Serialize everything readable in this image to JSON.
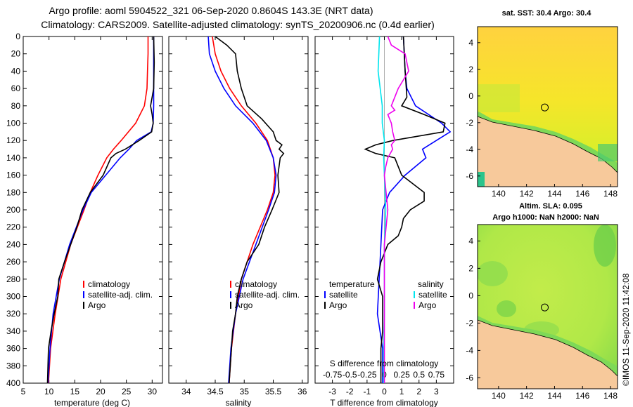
{
  "header": {
    "line1": "Argo profile: aoml 5904522_321 06-Sep-2020 0.8604S 143.3E (NRT data)",
    "line2": "Climatology: CARS2009. Satellite-adjusted climatology: synTS_20200906.nc (0.4d earlier)"
  },
  "credit": "©IMOS 11-Sep-2020 11:42:08",
  "colors": {
    "climatology": "#ff0000",
    "satellite": "#0000ff",
    "argo": "#000000",
    "sat_s": "#00e5ee",
    "argo_s": "#ee00ee"
  },
  "chart_data": [
    {
      "type": "line",
      "panel": "temperature",
      "xlabel": "temperature (deg C)",
      "xlim": [
        5,
        32
      ],
      "xticks": [
        5,
        10,
        15,
        20,
        25,
        30
      ],
      "xtick_labels": [
        "5",
        "10",
        "15",
        "20",
        "25",
        "30"
      ],
      "ylim": [
        400,
        0
      ],
      "yticks": [
        0,
        20,
        40,
        60,
        80,
        100,
        120,
        140,
        160,
        180,
        200,
        220,
        240,
        260,
        280,
        300,
        320,
        340,
        360,
        380,
        400
      ],
      "ytick_labels": [
        "0",
        "20",
        "40",
        "60",
        "80",
        "100",
        "120",
        "140",
        "160",
        "180",
        "200",
        "220",
        "240",
        "260",
        "280",
        "300",
        "320",
        "340",
        "360",
        "380",
        "400"
      ],
      "legend": [
        "climatology",
        "satellite-adj. clim.",
        "Argo"
      ],
      "series": [
        {
          "name": "climatology",
          "color": "#ff0000",
          "depth": [
            0,
            20,
            40,
            60,
            80,
            100,
            120,
            130,
            140,
            160,
            180,
            200,
            240,
            280,
            320,
            360,
            400
          ],
          "values": [
            29.2,
            29.2,
            29.1,
            29.0,
            28.5,
            26.8,
            24.0,
            22.5,
            21.2,
            19.5,
            18.0,
            16.8,
            14.2,
            12.3,
            11.2,
            10.3,
            9.9
          ]
        },
        {
          "name": "satellite-adj. clim.",
          "color": "#0000ff",
          "depth": [
            0,
            20,
            40,
            60,
            80,
            100,
            110,
            120,
            130,
            140,
            160,
            180,
            200,
            240,
            280,
            320,
            360,
            400
          ],
          "values": [
            30.3,
            30.3,
            30.3,
            30.3,
            30.3,
            30.2,
            29.8,
            27.0,
            25.5,
            23.8,
            21.0,
            18.2,
            16.6,
            14.0,
            12.0,
            10.8,
            10.2,
            9.8
          ]
        },
        {
          "name": "Argo",
          "color": "#000000",
          "depth": [
            0,
            30,
            60,
            80,
            90,
            100,
            110,
            120,
            130,
            135,
            140,
            160,
            180,
            200,
            220,
            240,
            260,
            280,
            300,
            320,
            340,
            360,
            380,
            400
          ],
          "values": [
            30.3,
            30.4,
            30.3,
            29.7,
            30.0,
            30.2,
            29.9,
            27.5,
            24.8,
            23.0,
            22.0,
            20.5,
            18.0,
            16.4,
            15.4,
            14.2,
            13.0,
            11.9,
            11.7,
            11.0,
            10.4,
            9.9,
            9.8,
            9.7
          ]
        }
      ]
    },
    {
      "type": "line",
      "panel": "salinity",
      "xlabel": "salinity",
      "xlim": [
        33.7,
        36.1
      ],
      "xticks": [
        34,
        34.5,
        35,
        35.5,
        36
      ],
      "xtick_labels": [
        "34",
        "34.5",
        "35",
        "35.5",
        "36"
      ],
      "ylim": [
        400,
        0
      ],
      "legend": [
        "climatology",
        "satellite-adj. clim.",
        "Argo"
      ],
      "series": [
        {
          "name": "climatology",
          "color": "#ff0000",
          "depth": [
            0,
            20,
            40,
            60,
            80,
            100,
            120,
            140,
            160,
            180,
            200,
            240,
            280,
            320,
            360,
            400
          ],
          "values": [
            34.45,
            34.5,
            34.6,
            34.75,
            34.95,
            35.2,
            35.4,
            35.5,
            35.53,
            35.5,
            35.4,
            35.15,
            34.95,
            34.85,
            34.78,
            34.74
          ]
        },
        {
          "name": "satellite-adj. clim.",
          "color": "#0000ff",
          "depth": [
            0,
            20,
            40,
            60,
            80,
            100,
            120,
            140,
            160,
            180,
            200,
            240,
            280,
            320,
            360,
            400
          ],
          "values": [
            34.38,
            34.4,
            34.5,
            34.65,
            34.85,
            35.15,
            35.38,
            35.5,
            35.55,
            35.52,
            35.42,
            35.2,
            34.98,
            34.85,
            34.77,
            34.73
          ]
        },
        {
          "name": "Argo",
          "color": "#000000",
          "depth": [
            0,
            10,
            20,
            40,
            60,
            80,
            95,
            110,
            120,
            125,
            130,
            135,
            140,
            160,
            180,
            200,
            220,
            240,
            260,
            280,
            300,
            320,
            340,
            360,
            380,
            400
          ],
          "values": [
            34.5,
            34.7,
            34.85,
            34.88,
            34.95,
            35.05,
            35.3,
            35.5,
            35.55,
            35.65,
            35.6,
            35.68,
            35.62,
            35.58,
            35.6,
            35.48,
            35.35,
            35.25,
            35.05,
            34.95,
            34.88,
            34.85,
            34.8,
            34.78,
            34.76,
            34.74
          ]
        }
      ]
    },
    {
      "type": "line",
      "panel": "difference",
      "xlabel": "T difference from climatology",
      "top_axis_label": "S difference from climatology",
      "xlim": [
        -4,
        4
      ],
      "xticks": [
        -3,
        -2,
        -1,
        0,
        1,
        2,
        3
      ],
      "xtick_labels": [
        "-3",
        "-2",
        "-1",
        "0",
        "1",
        "2",
        "3"
      ],
      "s_ticks": [
        -0.75,
        -0.5,
        -0.25,
        0,
        0.25,
        0.5,
        0.75
      ],
      "s_tick_labels": [
        "-0.75",
        "-0.5",
        "-0.25",
        "0",
        "0.25",
        "0.5",
        "0.75"
      ],
      "ylim": [
        400,
        0
      ],
      "legend_t_title": "temperature",
      "legend_s_title": "salinity",
      "legend_t": [
        "satellite",
        "Argo"
      ],
      "legend_s": [
        "satellite",
        "Argo"
      ],
      "series": [
        {
          "name": "T satellite",
          "color": "#0000ff",
          "depth": [
            0,
            40,
            60,
            80,
            100,
            110,
            120,
            130,
            140,
            160,
            180,
            200,
            240,
            280,
            320,
            360,
            400
          ],
          "values": [
            1.1,
            1.2,
            1.3,
            1.8,
            3.3,
            3.8,
            3.0,
            2.2,
            2.4,
            1.2,
            0.3,
            -0.1,
            -0.2,
            -0.3,
            -0.4,
            -0.1,
            -0.1
          ]
        },
        {
          "name": "T Argo",
          "color": "#000000",
          "depth": [
            0,
            40,
            70,
            80,
            90,
            100,
            110,
            120,
            125,
            130,
            135,
            140,
            150,
            160,
            180,
            190,
            200,
            210,
            220,
            230,
            240,
            260,
            280,
            300,
            320,
            340,
            360,
            380,
            400
          ],
          "values": [
            1.1,
            1.2,
            1.3,
            1.0,
            2.3,
            3.5,
            3.4,
            0.5,
            -0.5,
            -1.1,
            -0.5,
            0.6,
            0.8,
            1.0,
            2.3,
            2.3,
            1.5,
            1.1,
            1.0,
            0.8,
            0.2,
            -0.2,
            -0.4,
            -0.1,
            -0.1,
            -0.1,
            -0.2,
            -0.2,
            -0.2
          ]
        },
        {
          "name": "S satellite",
          "color": "#00e5ee",
          "depth": [
            0,
            40,
            80,
            100,
            120,
            140,
            160,
            200,
            240,
            280,
            320,
            360,
            400
          ],
          "values": [
            -0.07,
            -0.09,
            -0.03,
            -0.03,
            0.0,
            -0.01,
            0.0,
            0.02,
            0.0,
            0.0,
            0.0,
            -0.01,
            -0.01
          ]
        },
        {
          "name": "S Argo",
          "color": "#ee00ee",
          "depth": [
            0,
            10,
            20,
            40,
            60,
            80,
            85,
            90,
            100,
            110,
            120,
            125,
            130,
            140,
            150,
            160,
            200,
            240,
            280,
            300,
            320,
            360,
            400
          ],
          "values": [
            0.05,
            0.1,
            0.3,
            0.35,
            0.2,
            0.1,
            0.15,
            0.05,
            0.1,
            0.12,
            0.15,
            0.1,
            0.12,
            0.05,
            0.02,
            0.0,
            0.05,
            0.0,
            0.0,
            0.0,
            0.0,
            0.0,
            0.0
          ]
        }
      ]
    },
    {
      "type": "heatmap",
      "panel": "sst-map",
      "title": "sat. SST: 30.4 Argo: 30.4",
      "xlim": [
        138.5,
        148.5
      ],
      "ylim": [
        -6.8,
        5.2
      ],
      "xticks": [
        140,
        142,
        144,
        146,
        148
      ],
      "xtick_labels": [
        "140",
        "142",
        "144",
        "146",
        "148"
      ],
      "yticks": [
        4,
        2,
        0,
        -2,
        -4,
        -6
      ],
      "ytick_labels": [
        "4",
        "2",
        "0",
        "-2",
        "-4",
        "-6"
      ],
      "argo_position": [
        143.3,
        -0.86
      ]
    },
    {
      "type": "heatmap",
      "panel": "sla-map",
      "title": "Altim. SLA: 0.095",
      "subtitle": "Argo h1000: NaN h2000: NaN",
      "xlim": [
        138.5,
        148.5
      ],
      "ylim": [
        -6.8,
        5.2
      ],
      "xticks": [
        140,
        142,
        144,
        146,
        148
      ],
      "xtick_labels": [
        "140",
        "142",
        "144",
        "146",
        "148"
      ],
      "yticks": [
        4,
        2,
        0,
        -2,
        -4,
        -6
      ],
      "ytick_labels": [
        "4",
        "2",
        "0",
        "-2",
        "-4",
        "-6"
      ],
      "argo_position": [
        143.3,
        -0.86
      ]
    }
  ]
}
